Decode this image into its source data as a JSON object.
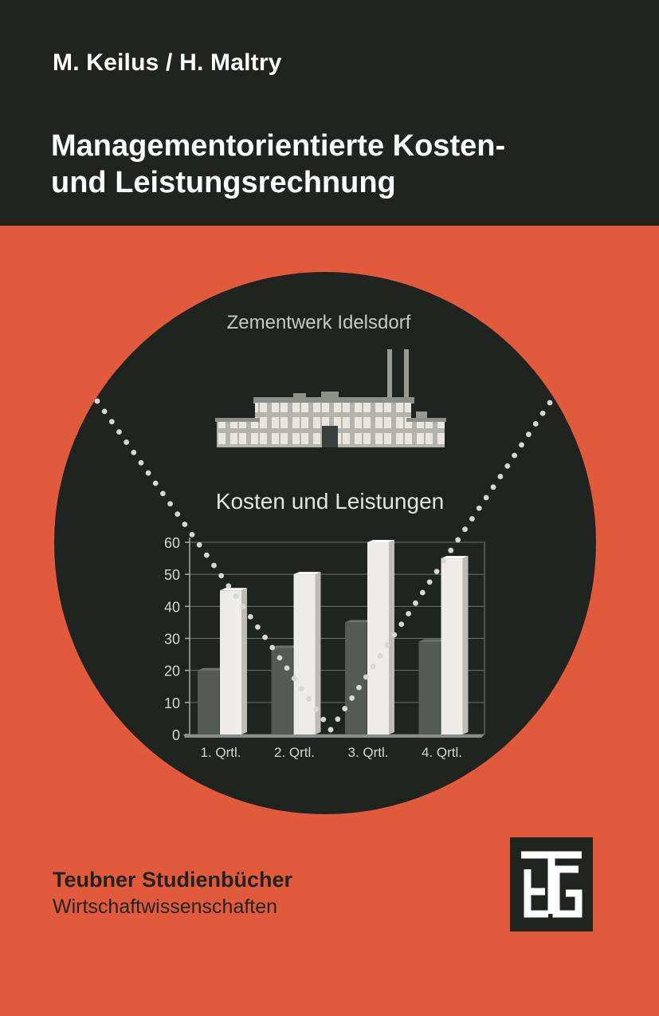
{
  "cover": {
    "authors": "M. Keilus / H. Maltry",
    "title_line1": "Managementorientierte Kosten-",
    "title_line2": "und Leistungsrechnung",
    "series_title": "Teubner Studienbücher",
    "series_subtitle": "Wirtschaftwissenschaften",
    "publisher_logo": "teubner-tg-monogram"
  },
  "illustration": {
    "plant_name": "Zementwerk Idelsdorf",
    "chart_title": "Kosten und Leistungen"
  },
  "colors": {
    "background": "#e25a3c",
    "band": "#1f2421",
    "text_light": "#ffffff",
    "bar_dark": "#545b56",
    "bar_light": "#eeece6"
  },
  "chart_data": {
    "type": "bar",
    "title": "Kosten und Leistungen",
    "categories": [
      "1. Qrtl.",
      "2. Qrtl.",
      "3. Qrtl.",
      "4. Qrtl."
    ],
    "series": [
      {
        "values": [
          20,
          27,
          35,
          29
        ]
      },
      {
        "values": [
          45,
          50,
          60,
          55
        ]
      }
    ],
    "yticks": [
      0,
      10,
      20,
      30,
      40,
      50,
      60
    ],
    "ylim": [
      0,
      60
    ],
    "grid": true,
    "legend": "none"
  }
}
